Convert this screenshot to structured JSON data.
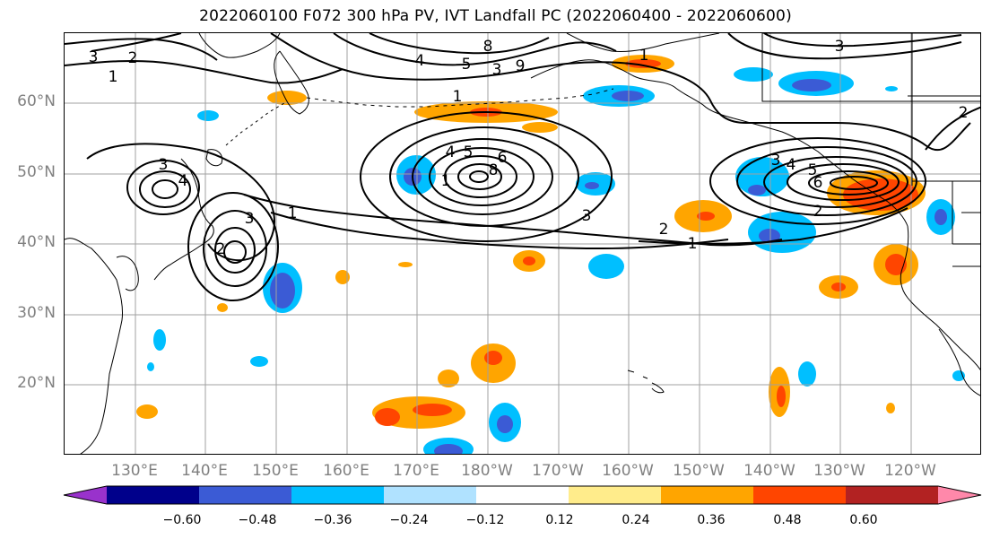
{
  "title": "2022060100 F072 300 hPa PV, IVT Landfall PC (2022060400 - 2022060600)",
  "map": {
    "lat_labels": [
      "60°N",
      "50°N",
      "40°N",
      "30°N",
      "20°N"
    ],
    "lon_labels": [
      "130°E",
      "140°E",
      "150°E",
      "160°E",
      "170°E",
      "180°W",
      "170°W",
      "160°W",
      "150°W",
      "140°W",
      "130°W",
      "120°W"
    ],
    "gridline_color": "#a0a0a0",
    "contour_color": "#000000"
  },
  "contour_labels": [
    "3",
    "2",
    "1",
    "4",
    "5",
    "8",
    "3",
    "9",
    "1",
    "1",
    "3",
    "4",
    "3",
    "2",
    "1",
    "8",
    "6",
    "5",
    "4",
    "1",
    "3",
    "2",
    "1",
    "3",
    "4",
    "5",
    "6",
    "2",
    "3",
    "2"
  ],
  "colorbar": {
    "ticks": [
      "−0.60",
      "−0.48",
      "−0.36",
      "−0.24",
      "−0.12",
      "0.12",
      "0.24",
      "0.36",
      "0.48",
      "0.60"
    ],
    "colors": [
      "#9932cc",
      "#00008b",
      "#3b5bd5",
      "#00bfff",
      "#b0e2ff",
      "#ffffff",
      "#ffec8b",
      "#ffa500",
      "#ff4500",
      "#b22222",
      "#ff88aa"
    ]
  }
}
